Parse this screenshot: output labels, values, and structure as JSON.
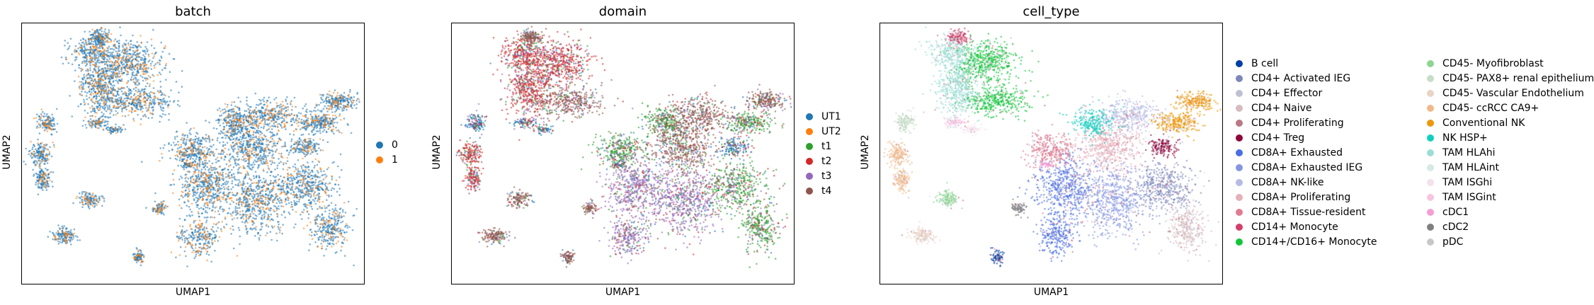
{
  "chart_data": [
    {
      "type": "scatter",
      "title": "batch",
      "xlabel": "UMAP1",
      "ylabel": "UMAP2",
      "legend_placement": "right",
      "grid": false,
      "series": [
        {
          "name": "0",
          "color": "#1f77b4"
        },
        {
          "name": "1",
          "color": "#ff7f0e"
        }
      ]
    },
    {
      "type": "scatter",
      "title": "domain",
      "xlabel": "UMAP1",
      "ylabel": "UMAP2",
      "legend_placement": "right",
      "grid": false,
      "series": [
        {
          "name": "UT1",
          "color": "#1f77b4"
        },
        {
          "name": "UT2",
          "color": "#ff7f0e"
        },
        {
          "name": "t1",
          "color": "#2ca02c"
        },
        {
          "name": "t2",
          "color": "#d62728"
        },
        {
          "name": "t3",
          "color": "#9467bd"
        },
        {
          "name": "t4",
          "color": "#8c564b"
        }
      ]
    },
    {
      "type": "scatter",
      "title": "cell_type",
      "xlabel": "UMAP1",
      "ylabel": "UMAP2",
      "legend_placement": "right",
      "grid": false,
      "series": [
        {
          "name": "B cell",
          "color": "#023fa5"
        },
        {
          "name": "CD4+ Activated IEG",
          "color": "#7d87b9"
        },
        {
          "name": "CD4+ Effector",
          "color": "#bec1d4"
        },
        {
          "name": "CD4+ Naive",
          "color": "#d6bcc0"
        },
        {
          "name": "CD4+ Proliferating",
          "color": "#bb7784"
        },
        {
          "name": "CD4+ Treg",
          "color": "#8e063b"
        },
        {
          "name": "CD8A+ Exhausted",
          "color": "#4a6fe3"
        },
        {
          "name": "CD8A+ Exhausted IEG",
          "color": "#8595e1"
        },
        {
          "name": "CD8A+ NK-like",
          "color": "#b5bbe3"
        },
        {
          "name": "CD8A+ Proliferating",
          "color": "#e6afb9"
        },
        {
          "name": "CD8A+ Tissue-resident",
          "color": "#e07b91"
        },
        {
          "name": "CD14+ Monocyte",
          "color": "#d33f6a"
        },
        {
          "name": "CD14+/CD16+ Monocyte",
          "color": "#11c638"
        },
        {
          "name": "CD45- Myofibroblast",
          "color": "#8dd593"
        },
        {
          "name": "CD45- PAX8+ renal epithelium",
          "color": "#c6dec7"
        },
        {
          "name": "CD45- Vascular Endothelium",
          "color": "#ead3c6"
        },
        {
          "name": "CD45- ccRCC CA9+",
          "color": "#f0b98d"
        },
        {
          "name": "Conventional NK",
          "color": "#ef9708"
        },
        {
          "name": "NK HSP+",
          "color": "#0fcfc0"
        },
        {
          "name": "TAM HLAhi",
          "color": "#9cded6"
        },
        {
          "name": "TAM HLAint",
          "color": "#d5eae7"
        },
        {
          "name": "TAM ISGhi",
          "color": "#f3e1eb"
        },
        {
          "name": "TAM ISGint",
          "color": "#f6c4e1"
        },
        {
          "name": "cDC1",
          "color": "#f79cd4"
        },
        {
          "name": "cDC2",
          "color": "#7f7f7f"
        },
        {
          "name": "pDC",
          "color": "#c7c7c7"
        }
      ]
    }
  ]
}
